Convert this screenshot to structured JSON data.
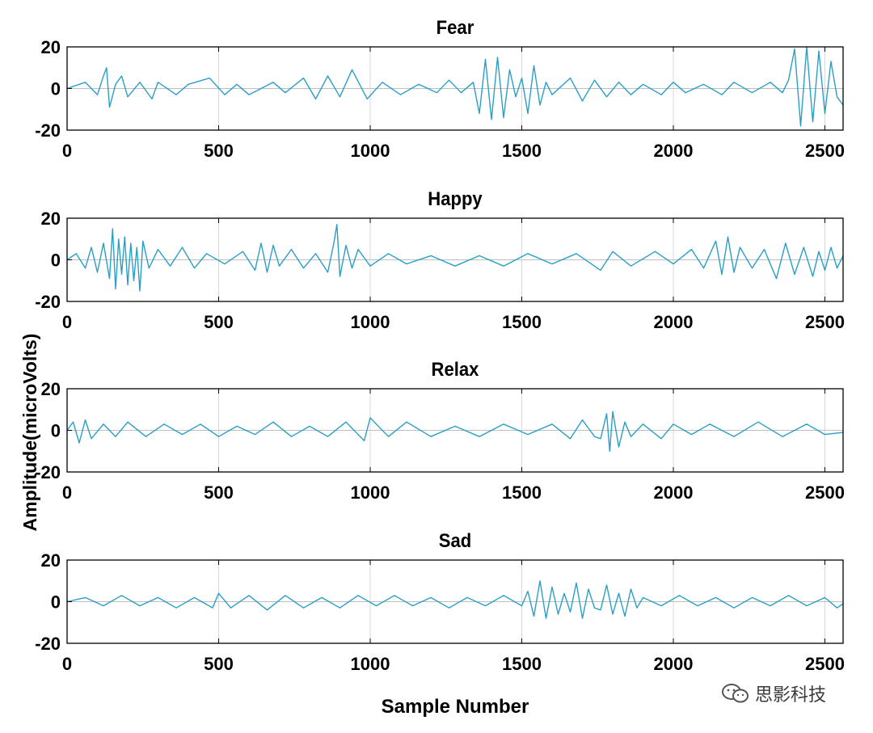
{
  "figure": {
    "ylabel": "Amplitude(microVolts)",
    "xlabel": "Sample Number",
    "watermark": "思影科技"
  },
  "colors": {
    "signal": "#2a9fc6",
    "zero_line": "#bfbfbf",
    "grid": "#d9d9d9",
    "axis": "#000000"
  },
  "chart_data": [
    {
      "type": "line",
      "title": "Fear",
      "xlim": [
        0,
        2560
      ],
      "ylim": [
        -20,
        20
      ],
      "xticks": [
        0,
        500,
        1000,
        1500,
        2000,
        2500
      ],
      "yticks": [
        20,
        0,
        -20
      ],
      "grid": "x-only",
      "series": [
        {
          "x": [
            0,
            60,
            100,
            120,
            130,
            140,
            160,
            180,
            200,
            240,
            280,
            300,
            360,
            400,
            470,
            520,
            560,
            600,
            680,
            720,
            780,
            820,
            860,
            900,
            940,
            990,
            1040,
            1100,
            1160,
            1220,
            1260,
            1300,
            1340,
            1360,
            1380,
            1400,
            1420,
            1440,
            1460,
            1480,
            1500,
            1520,
            1540,
            1560,
            1580,
            1600,
            1660,
            1700,
            1740,
            1780,
            1820,
            1860,
            1900,
            1960,
            2000,
            2040,
            2100,
            2160,
            2200,
            2260,
            2320,
            2360,
            2380,
            2400,
            2420,
            2440,
            2460,
            2480,
            2500,
            2520,
            2540,
            2560
          ],
          "y": [
            0,
            3,
            -3,
            6,
            10,
            -9,
            2,
            6,
            -4,
            3,
            -5,
            3,
            -3,
            2,
            5,
            -3,
            2,
            -3,
            3,
            -2,
            5,
            -5,
            6,
            -4,
            9,
            -5,
            3,
            -3,
            2,
            -2,
            4,
            -2,
            3,
            -12,
            14,
            -15,
            15,
            -14,
            9,
            -4,
            5,
            -12,
            11,
            -8,
            3,
            -3,
            5,
            -6,
            4,
            -4,
            3,
            -3,
            2,
            -3,
            3,
            -2,
            2,
            -3,
            3,
            -2,
            3,
            -2,
            4,
            19,
            -18,
            20,
            -16,
            18,
            -12,
            13,
            -4,
            -8
          ]
        }
      ]
    },
    {
      "type": "line",
      "title": "Happy",
      "xlim": [
        0,
        2560
      ],
      "ylim": [
        -20,
        20
      ],
      "xticks": [
        0,
        500,
        1000,
        1500,
        2000,
        2500
      ],
      "yticks": [
        20,
        0,
        -20
      ],
      "grid": "x-only",
      "series": [
        {
          "x": [
            0,
            30,
            60,
            80,
            100,
            120,
            140,
            150,
            160,
            170,
            180,
            190,
            200,
            210,
            220,
            230,
            240,
            250,
            270,
            300,
            340,
            380,
            420,
            460,
            520,
            580,
            620,
            640,
            660,
            680,
            700,
            740,
            780,
            820,
            860,
            880,
            890,
            900,
            920,
            940,
            960,
            1000,
            1060,
            1120,
            1200,
            1280,
            1360,
            1440,
            1520,
            1600,
            1680,
            1760,
            1800,
            1860,
            1940,
            2000,
            2060,
            2100,
            2140,
            2160,
            2180,
            2200,
            2220,
            2260,
            2300,
            2340,
            2370,
            2400,
            2430,
            2460,
            2480,
            2500,
            2520,
            2540,
            2560
          ],
          "y": [
            0,
            3,
            -4,
            6,
            -6,
            8,
            -9,
            15,
            -14,
            10,
            -7,
            11,
            -12,
            8,
            -10,
            6,
            -15,
            9,
            -4,
            5,
            -3,
            6,
            -4,
            3,
            -2,
            4,
            -5,
            8,
            -6,
            7,
            -3,
            5,
            -4,
            3,
            -6,
            8,
            17,
            -8,
            7,
            -4,
            5,
            -3,
            3,
            -2,
            2,
            -3,
            2,
            -3,
            3,
            -2,
            3,
            -5,
            4,
            -3,
            4,
            -2,
            5,
            -4,
            9,
            -7,
            11,
            -6,
            6,
            -4,
            5,
            -9,
            8,
            -7,
            6,
            -8,
            4,
            -5,
            6,
            -4,
            2
          ]
        }
      ]
    },
    {
      "type": "line",
      "title": "Relax",
      "xlim": [
        0,
        2560
      ],
      "ylim": [
        -20,
        20
      ],
      "xticks": [
        0,
        500,
        1000,
        1500,
        2000,
        2500
      ],
      "yticks": [
        20,
        0,
        -20
      ],
      "grid": "x-only",
      "series": [
        {
          "x": [
            0,
            20,
            40,
            60,
            80,
            120,
            160,
            200,
            260,
            320,
            380,
            440,
            500,
            560,
            620,
            680,
            740,
            800,
            860,
            920,
            980,
            1000,
            1060,
            1120,
            1200,
            1280,
            1360,
            1440,
            1520,
            1600,
            1660,
            1700,
            1740,
            1760,
            1780,
            1790,
            1800,
            1820,
            1840,
            1860,
            1900,
            1960,
            2000,
            2060,
            2120,
            2200,
            2280,
            2360,
            2440,
            2500,
            2560
          ],
          "y": [
            0,
            4,
            -6,
            5,
            -4,
            3,
            -3,
            4,
            -3,
            3,
            -2,
            3,
            -3,
            2,
            -2,
            4,
            -3,
            2,
            -3,
            4,
            -5,
            6,
            -3,
            4,
            -3,
            2,
            -3,
            3,
            -2,
            3,
            -4,
            5,
            -3,
            -4,
            8,
            -10,
            9,
            -8,
            4,
            -3,
            3,
            -4,
            3,
            -2,
            3,
            -3,
            4,
            -3,
            3,
            -2,
            -1
          ]
        }
      ]
    },
    {
      "type": "line",
      "title": "Sad",
      "xlim": [
        0,
        2560
      ],
      "ylim": [
        -20,
        20
      ],
      "xticks": [
        0,
        500,
        1000,
        1500,
        2000,
        2500
      ],
      "yticks": [
        20,
        0,
        -20
      ],
      "grid": "x-only",
      "series": [
        {
          "x": [
            0,
            60,
            120,
            180,
            240,
            300,
            360,
            420,
            480,
            500,
            540,
            600,
            660,
            720,
            780,
            840,
            900,
            960,
            1020,
            1080,
            1140,
            1200,
            1260,
            1320,
            1380,
            1440,
            1500,
            1520,
            1540,
            1560,
            1580,
            1600,
            1620,
            1640,
            1660,
            1680,
            1700,
            1720,
            1740,
            1760,
            1780,
            1800,
            1820,
            1840,
            1860,
            1880,
            1900,
            1960,
            2020,
            2080,
            2140,
            2200,
            2260,
            2320,
            2380,
            2440,
            2500,
            2540,
            2560
          ],
          "y": [
            0,
            2,
            -2,
            3,
            -2,
            2,
            -3,
            2,
            -3,
            4,
            -3,
            3,
            -4,
            3,
            -3,
            2,
            -3,
            3,
            -2,
            3,
            -2,
            2,
            -3,
            2,
            -2,
            3,
            -2,
            5,
            -7,
            10,
            -8,
            7,
            -6,
            4,
            -5,
            9,
            -8,
            6,
            -3,
            -4,
            8,
            -6,
            4,
            -7,
            6,
            -3,
            2,
            -2,
            3,
            -2,
            2,
            -3,
            2,
            -2,
            3,
            -2,
            2,
            -3,
            -1
          ]
        }
      ]
    }
  ]
}
